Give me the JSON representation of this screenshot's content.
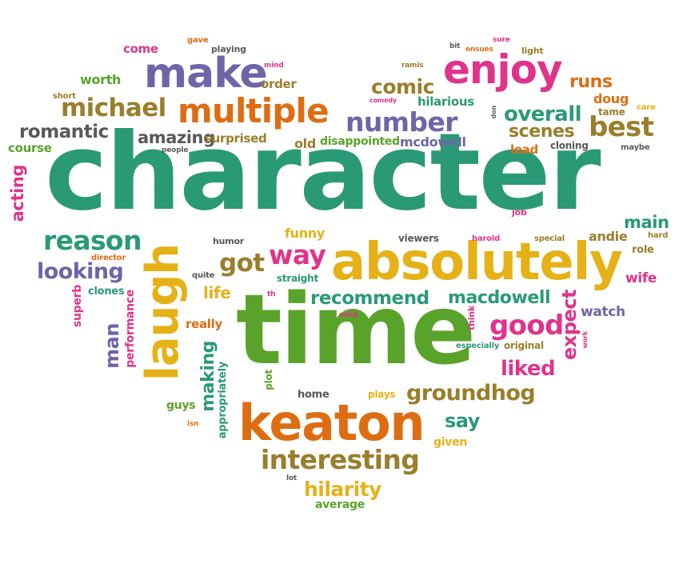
{
  "shape": "heart",
  "colors": {
    "green": "#2a9a76",
    "orange": "#de6d12",
    "purple": "#6f64a8",
    "olive": "#9a7e2b",
    "yellow": "#e5b117",
    "pink": "#e0338c",
    "lime": "#5aa32a",
    "gray": "#595959"
  },
  "words": [
    {
      "text": "character",
      "color": "green"
    },
    {
      "text": "time",
      "color": "lime"
    },
    {
      "text": "absolutely",
      "color": "yellow"
    },
    {
      "text": "keaton",
      "color": "orange"
    },
    {
      "text": "laugh",
      "color": "yellow"
    },
    {
      "text": "make",
      "color": "purple"
    },
    {
      "text": "multiple",
      "color": "orange"
    },
    {
      "text": "enjoy",
      "color": "pink"
    },
    {
      "text": "number",
      "color": "purple"
    },
    {
      "text": "michael",
      "color": "olive"
    },
    {
      "text": "interesting",
      "color": "olive"
    },
    {
      "text": "reason",
      "color": "green"
    },
    {
      "text": "good",
      "color": "pink"
    },
    {
      "text": "groundhog",
      "color": "olive"
    },
    {
      "text": "best",
      "color": "olive"
    },
    {
      "text": "overall",
      "color": "green"
    },
    {
      "text": "way",
      "color": "pink"
    },
    {
      "text": "got",
      "color": "olive"
    },
    {
      "text": "looking",
      "color": "purple"
    },
    {
      "text": "hilarity",
      "color": "yellow"
    },
    {
      "text": "comic",
      "color": "olive"
    },
    {
      "text": "romantic",
      "color": "gray"
    },
    {
      "text": "recommend",
      "color": "green"
    },
    {
      "text": "macdowell",
      "color": "green"
    },
    {
      "text": "liked",
      "color": "pink"
    },
    {
      "text": "amazing",
      "color": "gray"
    },
    {
      "text": "scenes",
      "color": "olive"
    },
    {
      "text": "runs",
      "color": "orange"
    },
    {
      "text": "say",
      "color": "green"
    },
    {
      "text": "expect",
      "color": "pink"
    },
    {
      "text": "making",
      "color": "green"
    },
    {
      "text": "man",
      "color": "purple"
    },
    {
      "text": "main",
      "color": "green"
    },
    {
      "text": "life",
      "color": "yellow"
    },
    {
      "text": "acting",
      "color": "pink"
    },
    {
      "text": "mcdowell",
      "color": "purple"
    },
    {
      "text": "hilarious",
      "color": "green"
    },
    {
      "text": "surprised",
      "color": "olive"
    },
    {
      "text": "disappointed",
      "color": "lime"
    },
    {
      "text": "watch",
      "color": "purple"
    },
    {
      "text": "wife",
      "color": "pink"
    },
    {
      "text": "andie",
      "color": "olive"
    },
    {
      "text": "doug",
      "color": "orange"
    },
    {
      "text": "funny",
      "color": "yellow"
    },
    {
      "text": "course",
      "color": "lime"
    },
    {
      "text": "worth",
      "color": "lime"
    },
    {
      "text": "order",
      "color": "olive"
    },
    {
      "text": "old",
      "color": "olive"
    },
    {
      "text": "come",
      "color": "pink"
    },
    {
      "text": "lead",
      "color": "orange"
    },
    {
      "text": "really",
      "color": "orange"
    },
    {
      "text": "performance",
      "color": "pink"
    },
    {
      "text": "superb",
      "color": "pink"
    },
    {
      "text": "appropriately",
      "color": "green"
    },
    {
      "text": "guys",
      "color": "lime"
    },
    {
      "text": "plot",
      "color": "lime"
    },
    {
      "text": "home",
      "color": "gray"
    },
    {
      "text": "plays",
      "color": "yellow"
    },
    {
      "text": "given",
      "color": "yellow"
    },
    {
      "text": "average",
      "color": "lime"
    },
    {
      "text": "viewers",
      "color": "gray"
    },
    {
      "text": "straight",
      "color": "green"
    },
    {
      "text": "clones",
      "color": "green"
    },
    {
      "text": "role",
      "color": "olive"
    },
    {
      "text": "original",
      "color": "olive"
    },
    {
      "text": "cloning",
      "color": "gray"
    },
    {
      "text": "humor",
      "color": "gray"
    },
    {
      "text": "tame",
      "color": "olive"
    },
    {
      "text": "think",
      "color": "pink"
    },
    {
      "text": "job",
      "color": "pink"
    },
    {
      "text": "especially",
      "color": "green"
    },
    {
      "text": "light",
      "color": "olive"
    },
    {
      "text": "playing",
      "color": "gray"
    },
    {
      "text": "gave",
      "color": "orange"
    },
    {
      "text": "short",
      "color": "olive"
    },
    {
      "text": "director",
      "color": "orange"
    },
    {
      "text": "quite",
      "color": "gray"
    },
    {
      "text": "special",
      "color": "olive"
    },
    {
      "text": "harold",
      "color": "pink"
    },
    {
      "text": "hard",
      "color": "olive"
    },
    {
      "text": "maybe",
      "color": "gray"
    },
    {
      "text": "care",
      "color": "yellow"
    },
    {
      "text": "people",
      "color": "gray"
    },
    {
      "text": "mind",
      "color": "pink"
    },
    {
      "text": "ramis",
      "color": "olive"
    },
    {
      "text": "comedy",
      "color": "pink"
    },
    {
      "text": "ensues",
      "color": "orange"
    },
    {
      "text": "sure",
      "color": "pink"
    },
    {
      "text": "bit",
      "color": "gray"
    },
    {
      "text": "don",
      "color": "gray"
    },
    {
      "text": "solid",
      "color": "pink"
    },
    {
      "text": "th",
      "color": "pink"
    },
    {
      "text": "work",
      "color": "pink"
    },
    {
      "text": "isn",
      "color": "orange"
    },
    {
      "text": "lot",
      "color": "gray"
    }
  ]
}
